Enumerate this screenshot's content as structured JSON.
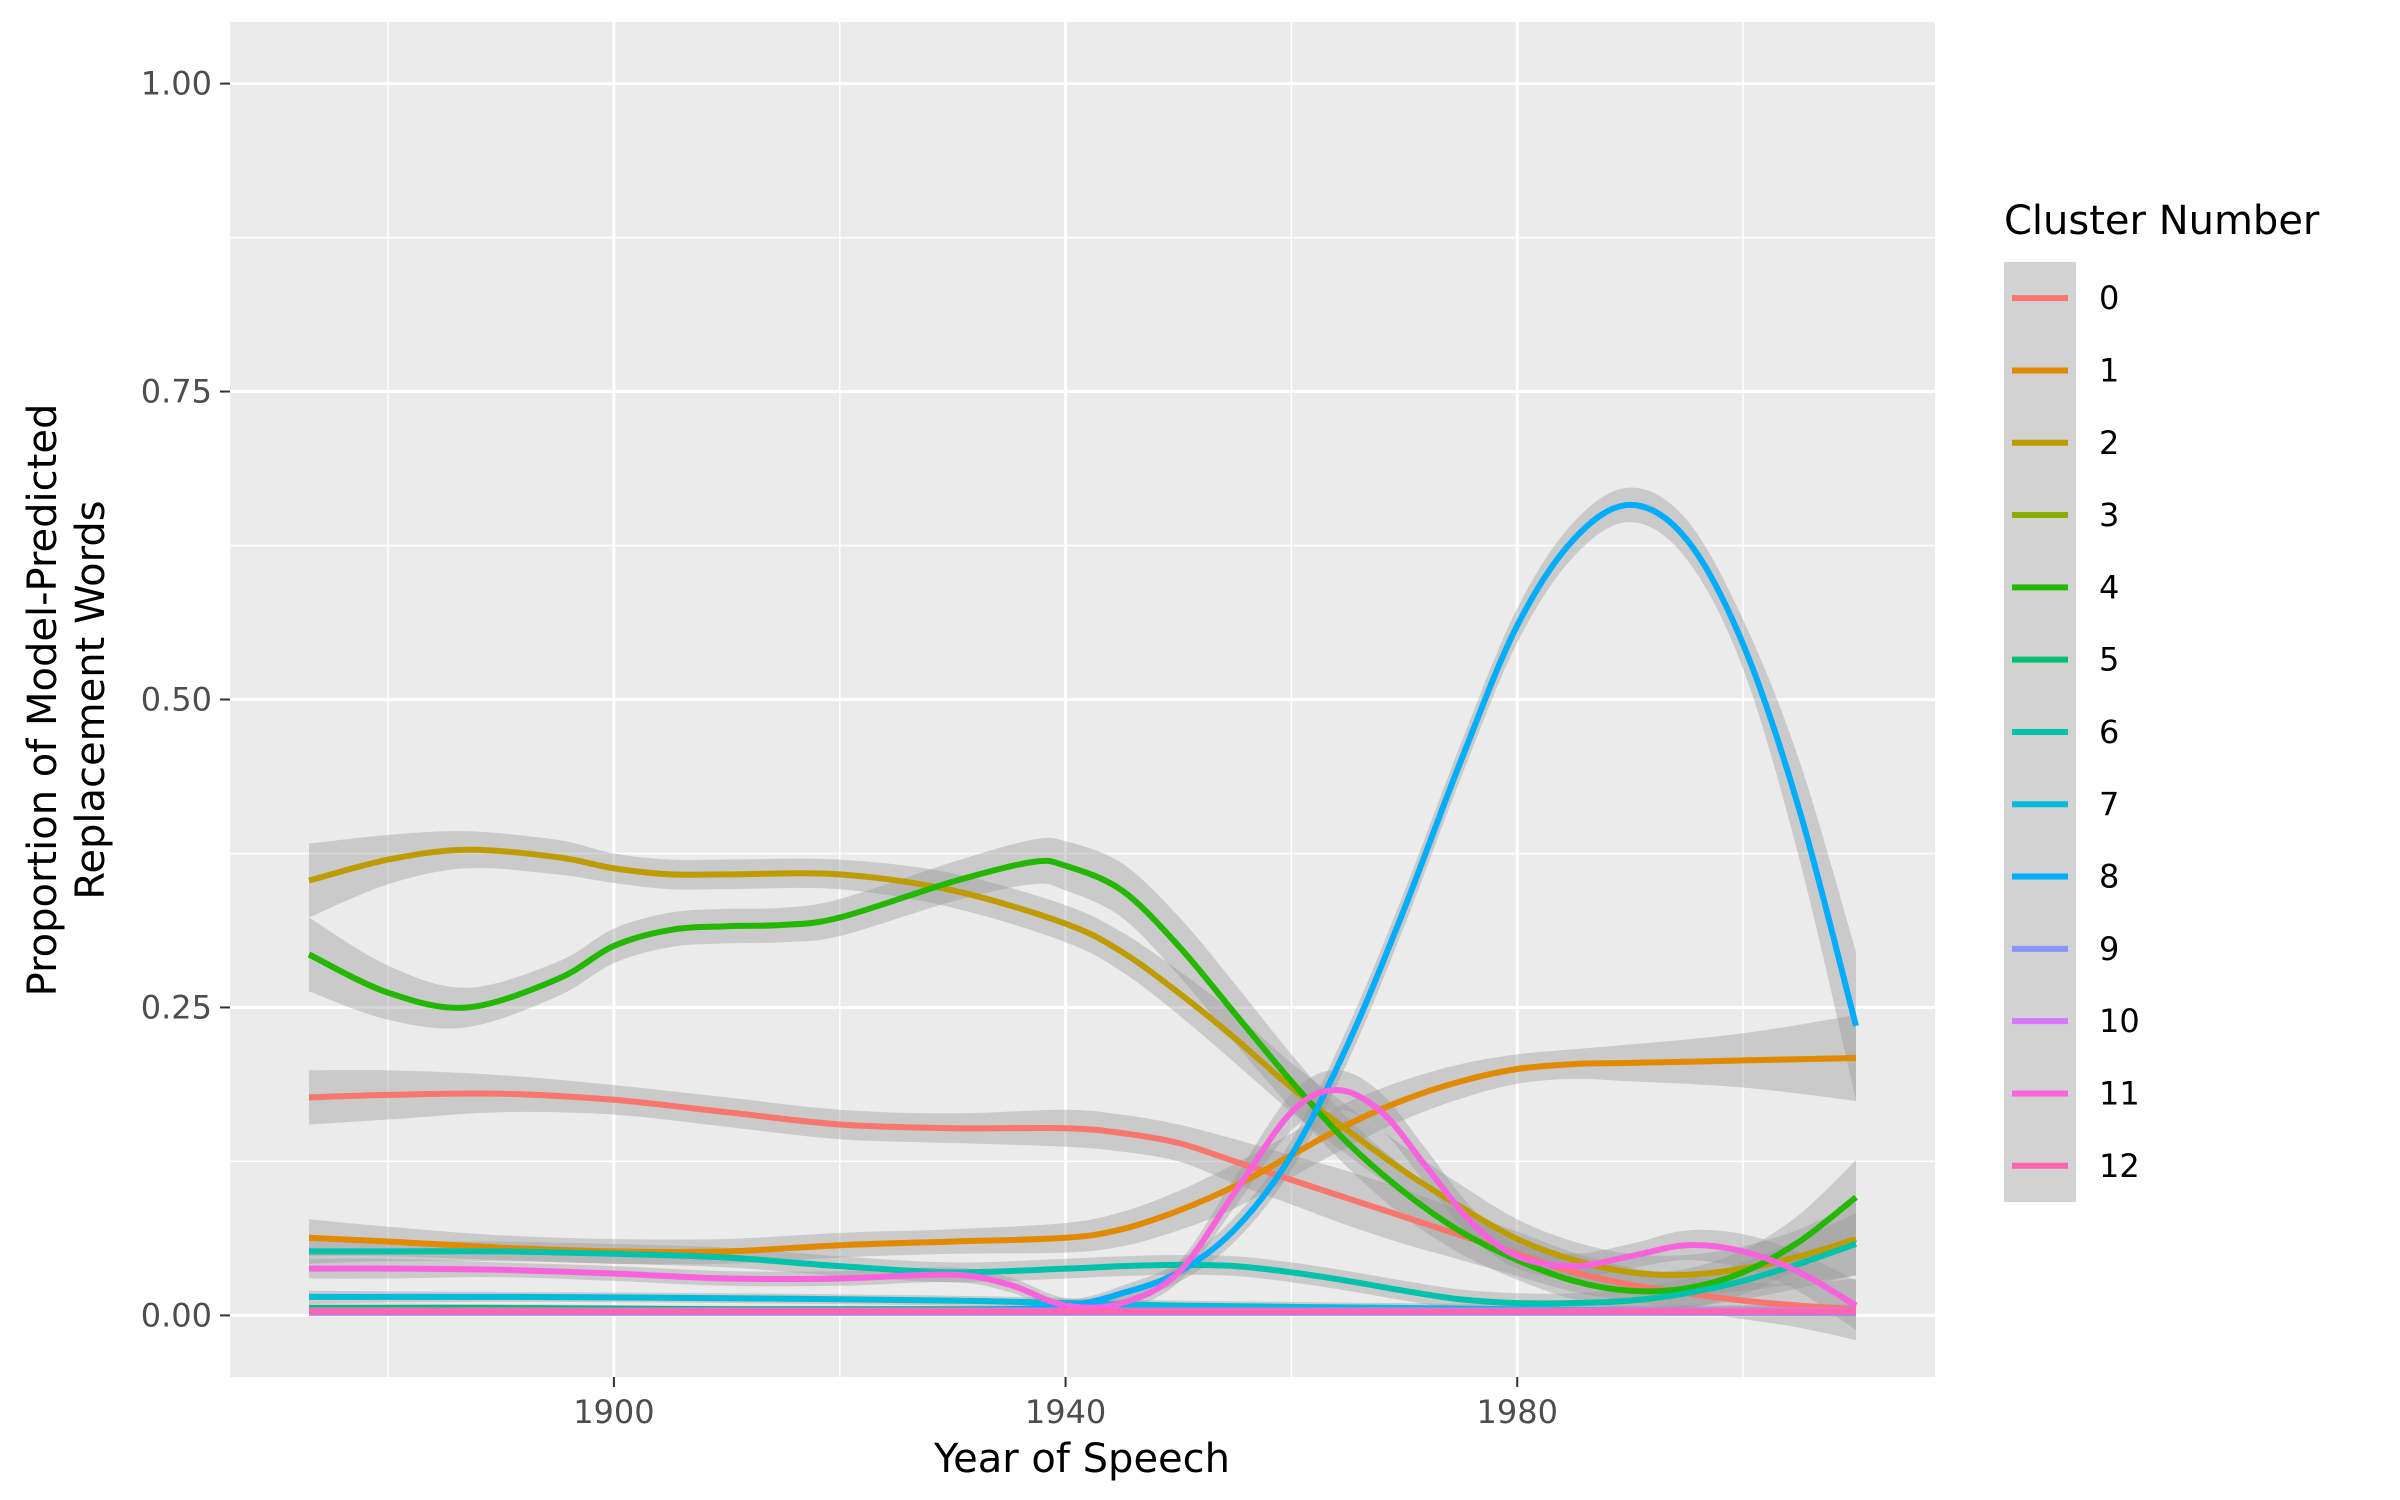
{
  "chart_data": {
    "type": "line",
    "title": "",
    "xlabel": "Year of Speech",
    "ylabel": [
      "Proportion of Model-Predicted",
      "Replacement Words"
    ],
    "xlim": [
      1866,
      2017
    ],
    "ylim": [
      -0.05,
      1.05
    ],
    "x_ticks": [
      1900,
      1940,
      1980
    ],
    "x_tick_labels": [
      "1900",
      "1940",
      "1980"
    ],
    "y_ticks": [
      0,
      0.25,
      0.5,
      0.75,
      1.0
    ],
    "y_tick_labels": [
      "0.00",
      "0.25",
      "0.50",
      "0.75",
      "1.00"
    ],
    "grid": true,
    "legend": {
      "title": "Cluster Number",
      "position": "right"
    },
    "confidence_band": true,
    "series": [
      {
        "name": "0",
        "color": "#F8766D",
        "x": [
          1873,
          1880,
          1890,
          1900,
          1910,
          1920,
          1930,
          1940,
          1945,
          1950,
          1955,
          1960,
          1965,
          1970,
          1975,
          1980,
          1985,
          1990,
          1995,
          2000,
          2005,
          2010
        ],
        "y": [
          0.177,
          0.179,
          0.18,
          0.175,
          0.165,
          0.155,
          0.152,
          0.152,
          0.148,
          0.14,
          0.125,
          0.11,
          0.095,
          0.08,
          0.065,
          0.05,
          0.035,
          0.025,
          0.018,
          0.012,
          0.008,
          0.005
        ],
        "band": [
          0.022,
          0.02,
          0.015,
          0.012,
          0.012,
          0.012,
          0.012,
          0.015,
          0.015,
          0.015,
          0.018,
          0.02,
          0.022,
          0.022,
          0.02,
          0.018,
          0.016,
          0.014,
          0.014,
          0.015,
          0.018,
          0.025
        ]
      },
      {
        "name": "1",
        "color": "#E18A00",
        "x": [
          1873,
          1880,
          1890,
          1900,
          1910,
          1920,
          1930,
          1940,
          1945,
          1950,
          1955,
          1960,
          1965,
          1970,
          1975,
          1980,
          1985,
          1990,
          1995,
          2000,
          2005,
          2010
        ],
        "y": [
          0.063,
          0.06,
          0.055,
          0.052,
          0.052,
          0.057,
          0.06,
          0.063,
          0.07,
          0.085,
          0.105,
          0.13,
          0.155,
          0.175,
          0.19,
          0.2,
          0.204,
          0.205,
          0.206,
          0.207,
          0.208,
          0.209
        ],
        "band": [
          0.015,
          0.012,
          0.01,
          0.01,
          0.01,
          0.01,
          0.01,
          0.012,
          0.014,
          0.016,
          0.018,
          0.018,
          0.018,
          0.016,
          0.014,
          0.012,
          0.012,
          0.015,
          0.018,
          0.022,
          0.028,
          0.035
        ]
      },
      {
        "name": "2",
        "color": "#BE9C00",
        "x": [
          1873,
          1880,
          1887,
          1895,
          1900,
          1905,
          1910,
          1920,
          1930,
          1940,
          1945,
          1950,
          1955,
          1960,
          1965,
          1970,
          1975,
          1980,
          1985,
          1990,
          1995,
          2000,
          2005,
          2010
        ],
        "y": [
          0.353,
          0.37,
          0.378,
          0.372,
          0.363,
          0.358,
          0.358,
          0.358,
          0.345,
          0.318,
          0.295,
          0.262,
          0.225,
          0.185,
          0.15,
          0.117,
          0.088,
          0.062,
          0.045,
          0.035,
          0.033,
          0.038,
          0.048,
          0.062
        ],
        "band": [
          0.03,
          0.02,
          0.015,
          0.014,
          0.012,
          0.012,
          0.012,
          0.012,
          0.014,
          0.015,
          0.016,
          0.018,
          0.02,
          0.02,
          0.02,
          0.02,
          0.018,
          0.016,
          0.015,
          0.015,
          0.016,
          0.018,
          0.022,
          0.03
        ]
      },
      {
        "name": "3",
        "color": "#8CAB00",
        "x": [
          1873,
          1900,
          1940,
          1980,
          2010
        ],
        "y": [
          0.003,
          0.003,
          0.003,
          0.003,
          0.003
        ],
        "band": [
          0.003,
          0.003,
          0.003,
          0.003,
          0.003
        ]
      },
      {
        "name": "4",
        "color": "#24B700",
        "x": [
          1873,
          1880,
          1887,
          1895,
          1900,
          1905,
          1910,
          1915,
          1920,
          1930,
          1937,
          1940,
          1945,
          1950,
          1955,
          1960,
          1965,
          1970,
          1975,
          1980,
          1985,
          1990,
          1995,
          2000,
          2005,
          2010
        ],
        "y": [
          0.293,
          0.262,
          0.25,
          0.273,
          0.3,
          0.313,
          0.316,
          0.317,
          0.323,
          0.352,
          0.368,
          0.365,
          0.345,
          0.3,
          0.245,
          0.19,
          0.14,
          0.1,
          0.068,
          0.045,
          0.028,
          0.02,
          0.022,
          0.035,
          0.06,
          0.096
        ],
        "band": [
          0.03,
          0.022,
          0.016,
          0.014,
          0.014,
          0.014,
          0.014,
          0.014,
          0.015,
          0.016,
          0.018,
          0.02,
          0.022,
          0.024,
          0.024,
          0.022,
          0.02,
          0.02,
          0.018,
          0.016,
          0.015,
          0.015,
          0.016,
          0.018,
          0.022,
          0.03
        ]
      },
      {
        "name": "5",
        "color": "#00BE70",
        "x": [
          1873,
          1890,
          1910,
          1930,
          1950,
          1970,
          1990,
          2010
        ],
        "y": [
          0.006,
          0.006,
          0.005,
          0.005,
          0.005,
          0.004,
          0.004,
          0.004
        ],
        "band": [
          0.004,
          0.003,
          0.003,
          0.003,
          0.003,
          0.003,
          0.003,
          0.004
        ]
      },
      {
        "name": "6",
        "color": "#00C1AB",
        "x": [
          1873,
          1880,
          1890,
          1900,
          1910,
          1920,
          1930,
          1940,
          1945,
          1950,
          1955,
          1960,
          1965,
          1970,
          1975,
          1980,
          1985,
          1990,
          1995,
          2000,
          2005,
          2010
        ],
        "y": [
          0.052,
          0.052,
          0.052,
          0.05,
          0.047,
          0.04,
          0.035,
          0.038,
          0.04,
          0.041,
          0.04,
          0.035,
          0.028,
          0.02,
          0.013,
          0.01,
          0.01,
          0.012,
          0.018,
          0.028,
          0.042,
          0.058
        ],
        "band": [
          0.01,
          0.008,
          0.008,
          0.008,
          0.008,
          0.008,
          0.008,
          0.008,
          0.008,
          0.008,
          0.008,
          0.008,
          0.008,
          0.008,
          0.008,
          0.008,
          0.008,
          0.01,
          0.012,
          0.015,
          0.02,
          0.025
        ]
      },
      {
        "name": "7",
        "color": "#00BBDA",
        "x": [
          1873,
          1890,
          1910,
          1930,
          1940,
          1950,
          1970,
          1990,
          2010
        ],
        "y": [
          0.015,
          0.015,
          0.014,
          0.012,
          0.01,
          0.008,
          0.006,
          0.004,
          0.004
        ],
        "band": [
          0.005,
          0.004,
          0.004,
          0.004,
          0.004,
          0.004,
          0.004,
          0.004,
          0.005
        ]
      },
      {
        "name": "8",
        "color": "#00ACFC",
        "x": [
          1873,
          1900,
          1930,
          1940,
          1945,
          1950,
          1955,
          1960,
          1965,
          1970,
          1975,
          1980,
          1985,
          1990,
          1995,
          2000,
          2005,
          2010
        ],
        "y": [
          0.003,
          0.003,
          0.004,
          0.008,
          0.018,
          0.035,
          0.07,
          0.13,
          0.22,
          0.33,
          0.45,
          0.56,
          0.63,
          0.658,
          0.63,
          0.545,
          0.41,
          0.235
        ],
        "band": [
          0.003,
          0.003,
          0.003,
          0.004,
          0.006,
          0.008,
          0.01,
          0.012,
          0.014,
          0.014,
          0.014,
          0.014,
          0.014,
          0.014,
          0.016,
          0.02,
          0.04,
          0.06
        ]
      },
      {
        "name": "9",
        "color": "#8B93FF",
        "x": [
          1873,
          1900,
          1940,
          1980,
          2010
        ],
        "y": [
          0.002,
          0.002,
          0.002,
          0.002,
          0.002
        ],
        "band": [
          0.002,
          0.002,
          0.002,
          0.002,
          0.002
        ]
      },
      {
        "name": "10",
        "color": "#D575FE",
        "x": [
          1873,
          1900,
          1940,
          1980,
          2010
        ],
        "y": [
          0.004,
          0.004,
          0.004,
          0.004,
          0.004
        ],
        "band": [
          0.002,
          0.002,
          0.002,
          0.002,
          0.002
        ]
      },
      {
        "name": "11",
        "color": "#F962DD",
        "x": [
          1873,
          1880,
          1890,
          1900,
          1910,
          1920,
          1930,
          1935,
          1940,
          1945,
          1950,
          1955,
          1960,
          1964,
          1968,
          1972,
          1976,
          1980,
          1985,
          1990,
          1995,
          2000,
          2005,
          2010
        ],
        "y": [
          0.038,
          0.038,
          0.037,
          0.034,
          0.03,
          0.03,
          0.033,
          0.025,
          0.008,
          0.01,
          0.035,
          0.1,
          0.165,
          0.183,
          0.165,
          0.12,
          0.075,
          0.048,
          0.04,
          0.048,
          0.057,
          0.052,
          0.035,
          0.008
        ],
        "band": [
          0.008,
          0.008,
          0.006,
          0.006,
          0.006,
          0.006,
          0.006,
          0.006,
          0.006,
          0.006,
          0.008,
          0.012,
          0.015,
          0.016,
          0.015,
          0.014,
          0.012,
          0.01,
          0.01,
          0.01,
          0.012,
          0.014,
          0.016,
          0.02
        ]
      },
      {
        "name": "12",
        "color": "#FF65AC",
        "x": [
          1873,
          1900,
          1940,
          1980,
          2010
        ],
        "y": [
          0.003,
          0.003,
          0.003,
          0.003,
          0.003
        ],
        "band": [
          0.002,
          0.002,
          0.002,
          0.002,
          0.002
        ]
      }
    ]
  }
}
